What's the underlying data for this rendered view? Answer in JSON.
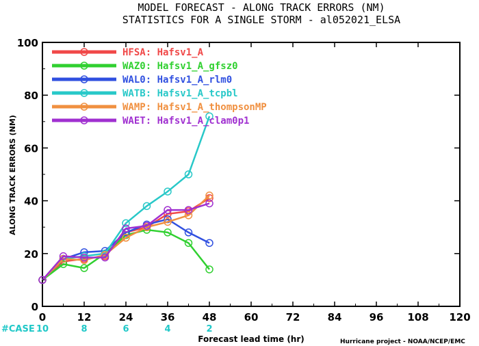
{
  "chart_data": {
    "type": "line",
    "title_line1": "MODEL FORECAST - ALONG TRACK ERRORS (NM)",
    "title_line2": "STATISTICS FOR A SINGLE STORM - al052021_ELSA",
    "xlabel": "Forecast lead time (hr)",
    "ylabel": "ALONG TRACK ERRORS (NM)",
    "xlim": [
      0,
      120
    ],
    "ylim": [
      0,
      100
    ],
    "xticks": [
      0,
      12,
      24,
      36,
      48,
      60,
      72,
      84,
      96,
      108,
      120
    ],
    "yticks": [
      0,
      20,
      40,
      60,
      80,
      100
    ],
    "x": [
      0,
      6,
      12,
      18,
      24,
      30,
      36,
      42,
      48
    ],
    "series": [
      {
        "name": "HFSA: Hafsv1_A",
        "color": "#f04848",
        "values": [
          10,
          17,
          18,
          19,
          28,
          30,
          35,
          36,
          41
        ]
      },
      {
        "name": "WAZ0: Hafsv1_A_gfsz0",
        "color": "#30d030",
        "values": [
          10,
          16,
          14.5,
          20,
          27,
          29,
          28,
          24,
          14
        ]
      },
      {
        "name": "WAL0: Hafsv1_A_rlm0",
        "color": "#3050e0",
        "values": [
          10,
          18,
          20.5,
          21,
          28,
          31,
          33,
          28,
          24
        ]
      },
      {
        "name": "WATB: Hafsv1_A_tcpbl",
        "color": "#28c8c8",
        "values": [
          10,
          18,
          19,
          20,
          31.5,
          38,
          43.5,
          50,
          72
        ]
      },
      {
        "name": "WAMP: Hafsv1_A_thompsonMP",
        "color": "#f09040",
        "values": [
          10,
          18,
          17.5,
          19.5,
          26,
          30,
          32,
          34.5,
          42
        ]
      },
      {
        "name": "WAET: Hafsv1_A_clam0p1",
        "color": "#a030d0",
        "values": [
          10,
          19,
          18.5,
          18.5,
          29.5,
          30.5,
          36.5,
          36.5,
          39
        ]
      }
    ],
    "legend_position": "top-left",
    "case_label": "#CASE",
    "case_counts": [
      {
        "x": 0,
        "n": "10"
      },
      {
        "x": 12,
        "n": "8"
      },
      {
        "x": 24,
        "n": "6"
      },
      {
        "x": 36,
        "n": "4"
      },
      {
        "x": 48,
        "n": "2"
      }
    ],
    "credit": "Hurricane project - NOAA/NCEP/EMC",
    "case_color": "#20c8c8"
  }
}
